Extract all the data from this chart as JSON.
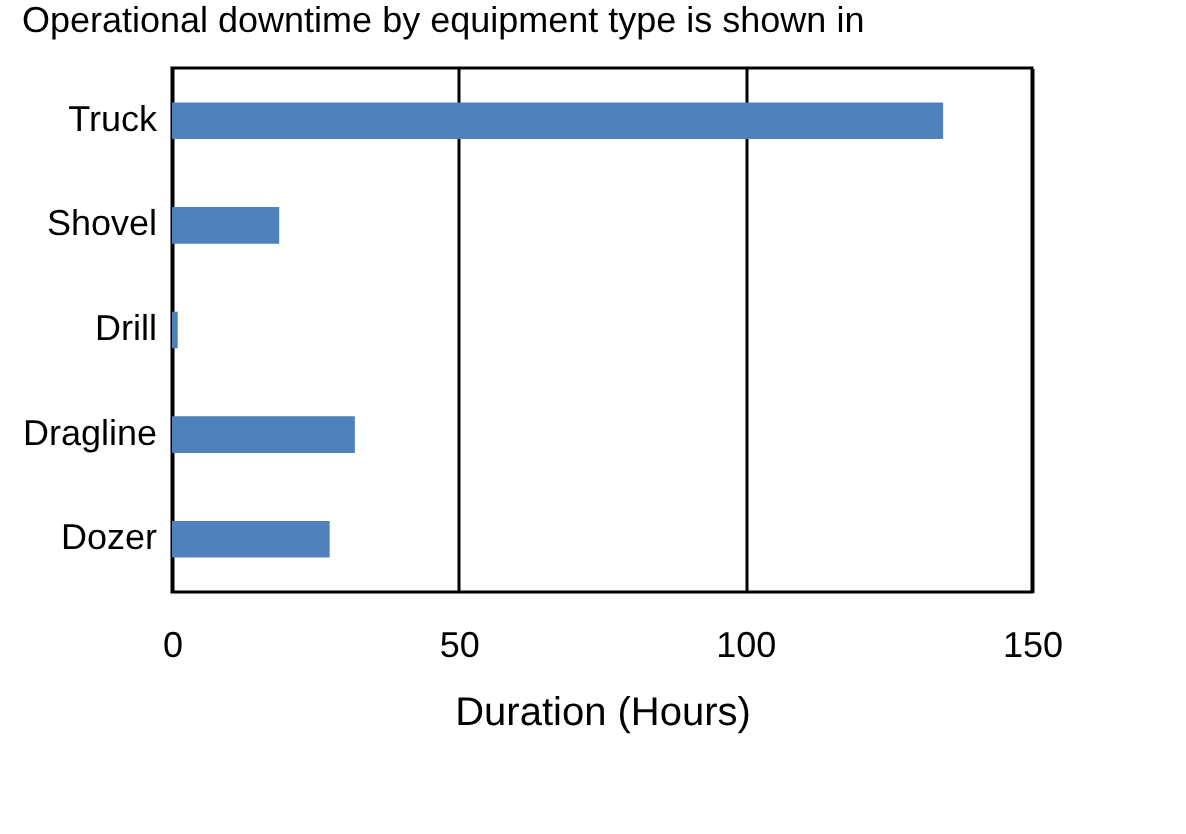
{
  "chart_data": {
    "type": "bar",
    "orientation": "horizontal",
    "title": "Operational downtime by equipment type is shown in",
    "categories": [
      "Truck",
      "Shovel",
      "Drill",
      "Dragline",
      "Dozer"
    ],
    "values": [
      134.5,
      18.7,
      1.0,
      31.9,
      27.5
    ],
    "color": "#4f81bd",
    "xlabel": "Duration (Hours)",
    "xlim": [
      0,
      150
    ],
    "xticks": [
      0,
      50,
      100,
      150
    ],
    "grid": "x"
  }
}
